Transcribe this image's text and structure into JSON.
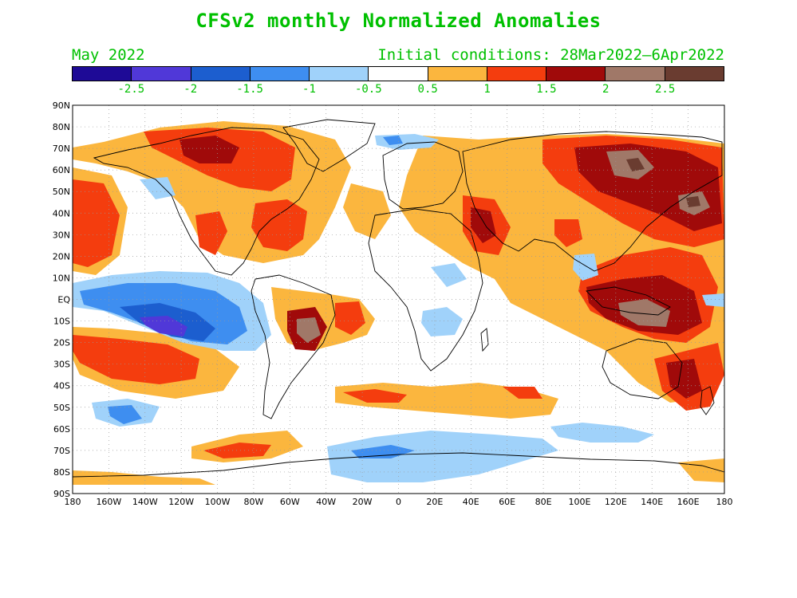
{
  "header": {
    "title": "CFSv2 monthly Normalized Anomalies",
    "target_month": "May 2022",
    "initial_conditions": "Initial conditions: 28Mar2022—6Apr2022"
  },
  "colorbar": {
    "colors": [
      "#1e0a96",
      "#5038d8",
      "#1c5ecf",
      "#3e8ef0",
      "#a0d2fa",
      "#ffffff",
      "#fbb63e",
      "#f43d0e",
      "#a00a0a",
      "#a07868",
      "#6a3c30"
    ],
    "labels": [
      "-2.5",
      "-2",
      "-1.5",
      "-1",
      "-0.5",
      "0.5",
      "1",
      "1.5",
      "2",
      "2.5"
    ]
  },
  "axes": {
    "lat_labels": [
      "90N",
      "80N",
      "70N",
      "60N",
      "50N",
      "40N",
      "30N",
      "20N",
      "10N",
      "EQ",
      "10S",
      "20S",
      "30S",
      "40S",
      "50S",
      "60S",
      "70S",
      "80S",
      "90S"
    ],
    "lon_labels": [
      "180",
      "160W",
      "140W",
      "120W",
      "100W",
      "80W",
      "60W",
      "40W",
      "20W",
      "0",
      "20E",
      "40E",
      "60E",
      "80E",
      "100E",
      "120E",
      "140E",
      "160E",
      "180"
    ]
  },
  "legend_colors": {
    "land_outline": "#000000",
    "grid": "#999999",
    "text": "#00c000"
  }
}
